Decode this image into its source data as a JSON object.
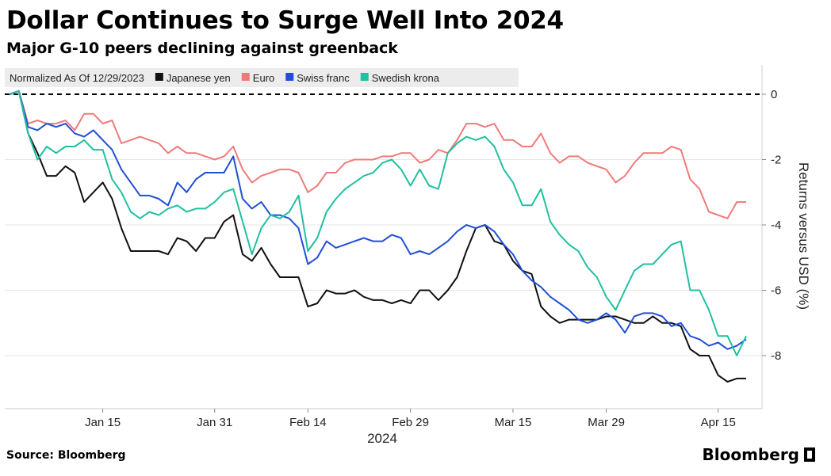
{
  "title": "Dollar Continues to Surge Well Into 2024",
  "subtitle": "Major G-10 peers declining against greenback",
  "source": "Source: Bloomberg",
  "brand": "Bloomberg",
  "chart_data": {
    "type": "line",
    "legend_prefix": "Normalized As Of 12/29/2023",
    "ylabel": "Returns versus USD (%)",
    "xlabel": "2024",
    "ylim": [
      -9.5,
      1
    ],
    "yticks": [
      0,
      -2,
      -4,
      -6,
      -8
    ],
    "ytick_labels": [
      "0",
      "-2",
      "-4",
      "-6",
      "-8"
    ],
    "xtick_labels": [
      "Jan 15",
      "Jan 31",
      "Feb 14",
      "Feb 29",
      "Mar 15",
      "Mar 29",
      "Apr 15"
    ],
    "xtick_index": [
      10,
      22,
      32,
      43,
      54,
      64,
      76
    ],
    "reference_line": 0,
    "legend_position": "top",
    "series": [
      {
        "name": "Japanese yen",
        "color": "#111111",
        "values": [
          0,
          0.1,
          -1.2,
          -1.8,
          -2.5,
          -2.5,
          -2.2,
          -2.4,
          -3.3,
          -3,
          -2.7,
          -3.2,
          -4.1,
          -4.8,
          -4.8,
          -4.8,
          -4.8,
          -4.9,
          -4.4,
          -4.5,
          -4.8,
          -4.4,
          -4.4,
          -3.9,
          -3.7,
          -4.9,
          -5.1,
          -4.7,
          -5.2,
          -5.6,
          -5.6,
          -5.6,
          -6.5,
          -6.4,
          -6,
          -6.1,
          -6.1,
          -6,
          -6.2,
          -6.3,
          -6.3,
          -6.4,
          -6.3,
          -6.4,
          -6,
          -6,
          -6.3,
          -6,
          -5.6,
          -4.8,
          -4.1,
          -4,
          -4.5,
          -4.6,
          -5.1,
          -5.4,
          -5.5,
          -6.5,
          -6.8,
          -7,
          -6.9,
          -6.9,
          -6.9,
          -6.9,
          -6.8,
          -6.8,
          -6.9,
          -7,
          -7,
          -6.8,
          -7,
          -7,
          -7.1,
          -7.8,
          -8,
          -8,
          -8.6,
          -8.8,
          -8.7,
          -8.7
        ]
      },
      {
        "name": "Euro",
        "color": "#f07a7a",
        "values": [
          0,
          0.1,
          -0.9,
          -0.8,
          -0.9,
          -0.9,
          -0.8,
          -1.1,
          -0.6,
          -0.6,
          -0.9,
          -0.8,
          -1.5,
          -1.4,
          -1.3,
          -1.4,
          -1.5,
          -1.8,
          -1.6,
          -1.8,
          -1.8,
          -1.9,
          -2,
          -1.9,
          -1.6,
          -2.3,
          -2.7,
          -2.5,
          -2.4,
          -2.3,
          -2.3,
          -2.4,
          -3,
          -2.8,
          -2.4,
          -2.4,
          -2.1,
          -2,
          -2,
          -2,
          -1.9,
          -1.9,
          -1.8,
          -1.8,
          -2.1,
          -2,
          -1.7,
          -1.8,
          -1.4,
          -0.9,
          -0.9,
          -1,
          -0.9,
          -1.4,
          -1.4,
          -1.6,
          -1.6,
          -1.2,
          -1.8,
          -2.1,
          -1.9,
          -1.9,
          -2.1,
          -2.2,
          -2.3,
          -2.7,
          -2.5,
          -2.1,
          -1.8,
          -1.8,
          -1.8,
          -1.6,
          -1.7,
          -2.6,
          -2.9,
          -3.6,
          -3.7,
          -3.8,
          -3.3,
          -3.3
        ]
      },
      {
        "name": "Swiss franc",
        "color": "#1f4fd6",
        "values": [
          0,
          0.1,
          -1,
          -1.1,
          -0.9,
          -1,
          -0.9,
          -1.2,
          -1.3,
          -1.1,
          -1.4,
          -1.7,
          -2.3,
          -2.7,
          -3.1,
          -3.1,
          -3.2,
          -3.4,
          -2.7,
          -3,
          -2.6,
          -2.4,
          -2.4,
          -2.4,
          -1.9,
          -3.2,
          -3.5,
          -3.3,
          -3.7,
          -3.7,
          -3.8,
          -4.1,
          -5.2,
          -5,
          -4.5,
          -4.7,
          -4.6,
          -4.5,
          -4.4,
          -4.5,
          -4.5,
          -4.3,
          -4.4,
          -4.9,
          -4.8,
          -4.9,
          -4.7,
          -4.5,
          -4.2,
          -4,
          -4.1,
          -4,
          -4.2,
          -4.6,
          -4.9,
          -5.4,
          -5.7,
          -5.9,
          -6.2,
          -6.4,
          -6.6,
          -6.9,
          -7,
          -6.9,
          -6.7,
          -6.9,
          -7.3,
          -6.8,
          -6.7,
          -6.7,
          -6.8,
          -7.1,
          -7,
          -7.4,
          -7.5,
          -7.7,
          -7.6,
          -7.8,
          -7.7,
          -7.5
        ]
      },
      {
        "name": "Swedish krona",
        "color": "#20c0a0",
        "values": [
          0,
          0.1,
          -1.2,
          -2,
          -1.6,
          -1.8,
          -1.6,
          -1.6,
          -1.4,
          -1.7,
          -1.7,
          -2.6,
          -3,
          -3.6,
          -3.8,
          -3.6,
          -3.7,
          -3.5,
          -3.4,
          -3.6,
          -3.5,
          -3.5,
          -3.3,
          -3,
          -2.9,
          -3.9,
          -4.9,
          -4.1,
          -3.7,
          -3.8,
          -3.6,
          -3.1,
          -4.8,
          -4.4,
          -3.6,
          -3.2,
          -2.9,
          -2.7,
          -2.5,
          -2.4,
          -2.1,
          -2,
          -2.3,
          -2.8,
          -2.3,
          -2.8,
          -2.9,
          -1.8,
          -1.5,
          -1.3,
          -1.4,
          -1.3,
          -1.6,
          -2.3,
          -2.7,
          -3.4,
          -3.4,
          -2.9,
          -3.9,
          -4.3,
          -4.6,
          -4.8,
          -5.3,
          -5.6,
          -6.2,
          -6.6,
          -6,
          -5.4,
          -5.2,
          -5.2,
          -4.9,
          -4.6,
          -4.5,
          -6,
          -6,
          -6.6,
          -7.4,
          -7.4,
          -8,
          -7.4
        ]
      }
    ]
  }
}
